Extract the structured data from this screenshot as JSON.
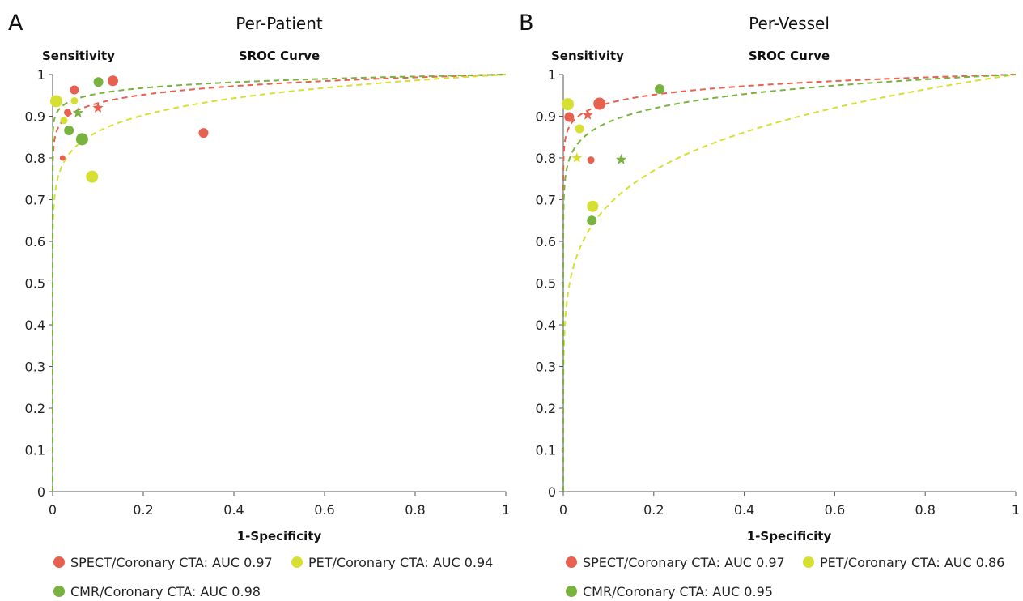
{
  "colors": {
    "spect": "#e8604f",
    "pet": "#d6e032",
    "cmr": "#77b33e"
  },
  "chart_data": [
    {
      "type": "scatter",
      "panel": "A",
      "title": "Per-Patient",
      "subtitle": "SROC Curve",
      "ylabel": "Sensitivity",
      "xlabel": "1-Specificity",
      "xlim": [
        0,
        1
      ],
      "ylim": [
        0,
        1
      ],
      "xticks": [
        "0",
        "0.2",
        "0.4",
        "0.6",
        "0.8",
        "1"
      ],
      "yticks": [
        "0",
        "0.1",
        "0.2",
        "0.3",
        "0.4",
        "0.5",
        "0.6",
        "0.7",
        "0.8",
        "0.9",
        "1"
      ],
      "series": [
        {
          "key": "spect",
          "name": "SPECT/Coronary CTA: AUC 0.97",
          "auc": 0.97,
          "summary": {
            "x": 0.1,
            "y": 0.92
          },
          "points": [
            {
              "x": 0.133,
              "y": 0.985,
              "size": 6.5
            },
            {
              "x": 0.048,
              "y": 0.963,
              "size": 5.5
            },
            {
              "x": 0.033,
              "y": 0.909,
              "size": 4.5
            },
            {
              "x": 0.022,
              "y": 0.8,
              "size": 3.5
            },
            {
              "x": 0.333,
              "y": 0.86,
              "size": 6
            }
          ]
        },
        {
          "key": "pet",
          "name": "PET/Coronary CTA: AUC 0.94",
          "auc": 0.94,
          "summary": null,
          "points": [
            {
              "x": 0.008,
              "y": 0.936,
              "size": 7.5
            },
            {
              "x": 0.048,
              "y": 0.937,
              "size": 4.5
            },
            {
              "x": 0.025,
              "y": 0.89,
              "size": 4.5
            },
            {
              "x": 0.087,
              "y": 0.755,
              "size": 7.5
            }
          ]
        },
        {
          "key": "cmr",
          "name": "CMR/Coronary CTA: AUC 0.98",
          "auc": 0.98,
          "summary": {
            "x": 0.056,
            "y": 0.908
          },
          "points": [
            {
              "x": 0.101,
              "y": 0.982,
              "size": 6
            },
            {
              "x": 0.036,
              "y": 0.866,
              "size": 6
            },
            {
              "x": 0.065,
              "y": 0.845,
              "size": 7.5
            }
          ]
        }
      ]
    },
    {
      "type": "scatter",
      "panel": "B",
      "title": "Per-Vessel",
      "subtitle": "SROC Curve",
      "ylabel": "Sensitivity",
      "xlabel": "1-Specificity",
      "xlim": [
        0,
        1
      ],
      "ylim": [
        0,
        1
      ],
      "xticks": [
        "0",
        "0.2",
        "0.4",
        "0.6",
        "0.8",
        "1"
      ],
      "yticks": [
        "0",
        "0.1",
        "0.2",
        "0.3",
        "0.4",
        "0.5",
        "0.6",
        "0.7",
        "0.8",
        "0.9",
        "1"
      ],
      "series": [
        {
          "key": "spect",
          "name": "SPECT/Coronary CTA: AUC 0.97",
          "auc": 0.97,
          "summary": {
            "x": 0.054,
            "y": 0.903
          },
          "points": [
            {
              "x": 0.013,
              "y": 0.898,
              "size": 6
            },
            {
              "x": 0.08,
              "y": 0.93,
              "size": 7.5
            },
            {
              "x": 0.061,
              "y": 0.795,
              "size": 4.5
            }
          ]
        },
        {
          "key": "pet",
          "name": "PET/Coronary CTA: AUC 0.86",
          "auc": 0.86,
          "summary": {
            "x": 0.03,
            "y": 0.8
          },
          "points": [
            {
              "x": 0.01,
              "y": 0.929,
              "size": 7.5
            },
            {
              "x": 0.036,
              "y": 0.87,
              "size": 5.5
            },
            {
              "x": 0.065,
              "y": 0.684,
              "size": 7
            }
          ]
        },
        {
          "key": "cmr",
          "name": "CMR/Coronary CTA: AUC 0.95",
          "auc": 0.95,
          "summary": {
            "x": 0.128,
            "y": 0.796
          },
          "points": [
            {
              "x": 0.213,
              "y": 0.965,
              "size": 6
            },
            {
              "x": 0.063,
              "y": 0.65,
              "size": 6
            }
          ]
        }
      ]
    }
  ]
}
